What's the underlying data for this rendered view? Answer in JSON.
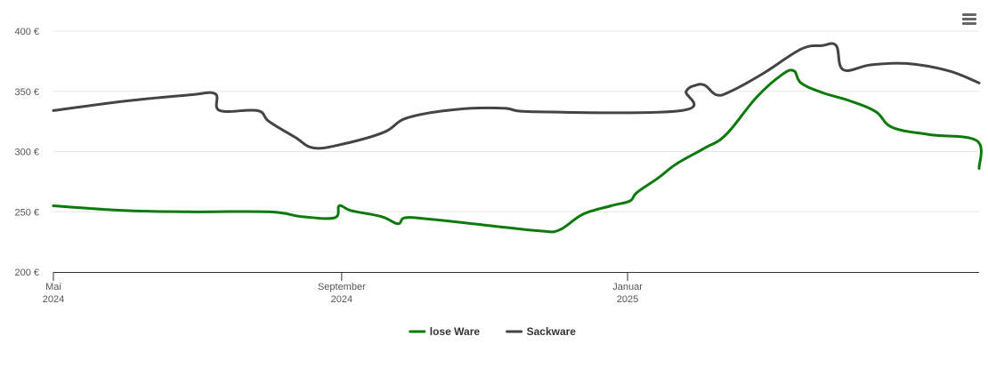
{
  "menu": {
    "icon": "hamburger-menu-icon"
  },
  "chart_data": {
    "type": "line",
    "title": "",
    "xlabel": "",
    "ylabel": "",
    "y_unit": "€",
    "ylim": [
      200,
      400
    ],
    "y_ticks": [
      {
        "value": 200,
        "label": "200 €"
      },
      {
        "value": 250,
        "label": "250 €"
      },
      {
        "value": 300,
        "label": "300 €"
      },
      {
        "value": 350,
        "label": "350 €"
      },
      {
        "value": 400,
        "label": "400 €"
      }
    ],
    "xlim": [
      "2024-05-01",
      "2025-05-31"
    ],
    "x_ticks": [
      {
        "date": "2024-05-01",
        "month": "Mai",
        "year": "2024"
      },
      {
        "date": "2024-09-01",
        "month": "September",
        "year": "2024"
      },
      {
        "date": "2025-01-01",
        "month": "Januar",
        "year": "2025"
      }
    ],
    "grid": "horizontal",
    "legend_position": "bottom-center",
    "series": [
      {
        "name": "lose Ware",
        "color": "#0b7a0b",
        "points": [
          [
            "2024-05-01",
            255
          ],
          [
            "2024-06-01",
            251
          ],
          [
            "2024-06-28",
            250
          ],
          [
            "2024-08-01",
            250
          ],
          [
            "2024-08-15",
            246
          ],
          [
            "2024-08-29",
            245
          ],
          [
            "2024-08-31",
            255
          ],
          [
            "2024-09-05",
            251
          ],
          [
            "2024-09-18",
            246
          ],
          [
            "2024-09-25",
            240
          ],
          [
            "2024-09-28",
            245
          ],
          [
            "2024-10-08",
            244
          ],
          [
            "2024-11-01",
            239
          ],
          [
            "2024-11-25",
            234
          ],
          [
            "2024-12-03",
            235
          ],
          [
            "2024-12-13",
            248
          ],
          [
            "2024-12-25",
            255
          ],
          [
            "2025-01-02",
            259
          ],
          [
            "2025-01-05",
            266
          ],
          [
            "2025-01-14",
            278
          ],
          [
            "2025-01-22",
            290
          ],
          [
            "2025-02-03",
            303
          ],
          [
            "2025-02-12",
            314
          ],
          [
            "2025-02-25",
            345
          ],
          [
            "2025-03-08",
            364
          ],
          [
            "2025-03-13",
            367
          ],
          [
            "2025-03-16",
            357
          ],
          [
            "2025-03-25",
            349
          ],
          [
            "2025-04-06",
            342
          ],
          [
            "2025-04-17",
            333
          ],
          [
            "2025-04-24",
            320
          ],
          [
            "2025-05-10",
            314
          ],
          [
            "2025-05-30",
            309
          ],
          [
            "2025-05-31",
            286
          ]
        ]
      },
      {
        "name": "Sackware",
        "color": "#444444",
        "points": [
          [
            "2024-05-01",
            334
          ],
          [
            "2024-06-01",
            342
          ],
          [
            "2024-06-28",
            347
          ],
          [
            "2024-07-09",
            348
          ],
          [
            "2024-07-11",
            334
          ],
          [
            "2024-07-27",
            334
          ],
          [
            "2024-08-01",
            325
          ],
          [
            "2024-08-12",
            312
          ],
          [
            "2024-08-20",
            303
          ],
          [
            "2024-09-01",
            306
          ],
          [
            "2024-09-19",
            316
          ],
          [
            "2024-09-29",
            328
          ],
          [
            "2024-10-20",
            335
          ],
          [
            "2024-11-09",
            336
          ],
          [
            "2024-11-23",
            333
          ],
          [
            "2025-01-24",
            334
          ],
          [
            "2025-01-26",
            350
          ],
          [
            "2025-01-30",
            355
          ],
          [
            "2025-02-03",
            355
          ],
          [
            "2025-02-08",
            347
          ],
          [
            "2025-02-14",
            350
          ],
          [
            "2025-02-28",
            365
          ],
          [
            "2025-03-16",
            385
          ],
          [
            "2025-03-25",
            388
          ],
          [
            "2025-03-31",
            388
          ],
          [
            "2025-04-03",
            368
          ],
          [
            "2025-04-15",
            372
          ],
          [
            "2025-05-01",
            373
          ],
          [
            "2025-05-18",
            367
          ],
          [
            "2025-05-31",
            357
          ]
        ]
      }
    ]
  }
}
